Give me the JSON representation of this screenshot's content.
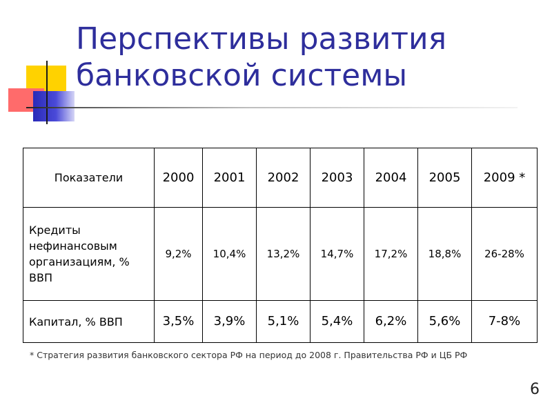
{
  "slide": {
    "title_lines": [
      "Перспективы развития",
      "банковской системы"
    ],
    "page_number": "6",
    "accent_colors": {
      "title": "#2e2e9c",
      "yellow": "#ffd200",
      "red": "#ff6b6b",
      "blue": "#2a2ab8"
    }
  },
  "table": {
    "headers": [
      "Показатели",
      "2000",
      "2001",
      "2002",
      "2003",
      "2004",
      "2005",
      "2009 *"
    ],
    "rows": [
      {
        "label": "Кредиты нефинансовым организациям, % ВВП",
        "values": [
          "9,2%",
          "10,4%",
          "13,2%",
          "14,7%",
          "17,2%",
          "18,8%",
          "26-28%"
        ]
      },
      {
        "label": "Капитал, % ВВП",
        "values": [
          "3,5%",
          "3,9%",
          "5,1%",
          "5,4%",
          "6,2%",
          "5,6%",
          "7-8%"
        ]
      }
    ]
  },
  "footnote": "* Стратегия развития банковского сектора РФ на период до 2008 г. Правительства РФ и ЦБ РФ"
}
